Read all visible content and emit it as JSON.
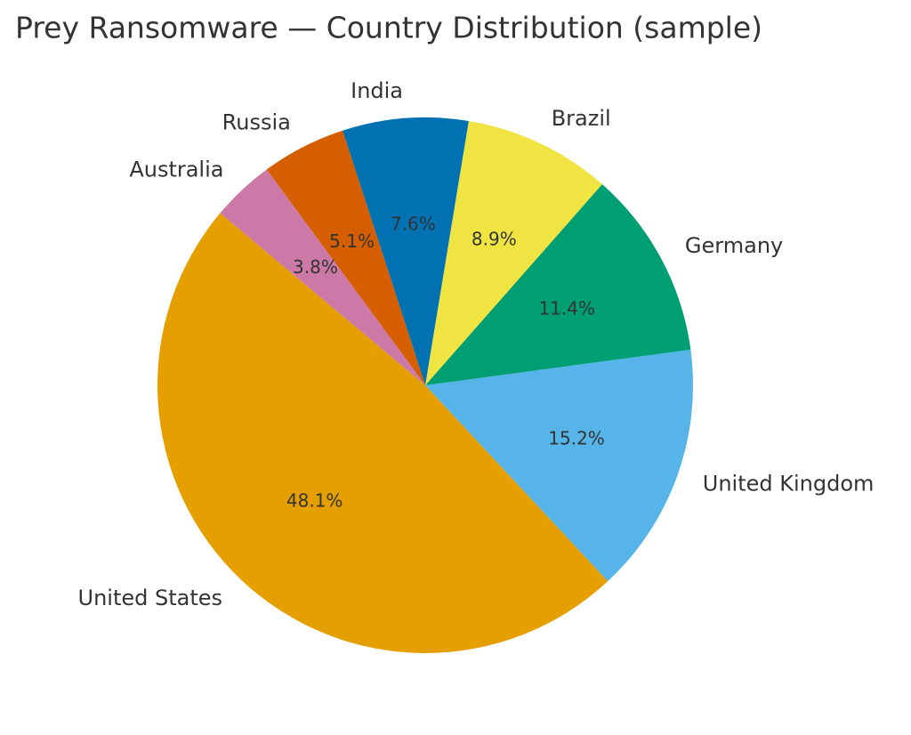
{
  "chart_data": {
    "type": "pie",
    "title": "Prey Ransomware — Country Distribution (sample)",
    "categories": [
      "United States",
      "United Kingdom",
      "Germany",
      "Brazil",
      "India",
      "Russia",
      "Australia"
    ],
    "values": [
      48.1,
      15.2,
      11.4,
      8.9,
      7.6,
      5.1,
      3.8
    ],
    "value_labels": [
      "48.1%",
      "15.2%",
      "11.4%",
      "8.9%",
      "7.6%",
      "5.1%",
      "3.8%"
    ],
    "colors": [
      "#e69f00",
      "#56b4e9",
      "#009e73",
      "#f0e442",
      "#0072b2",
      "#d55e00",
      "#cc79a7"
    ]
  }
}
